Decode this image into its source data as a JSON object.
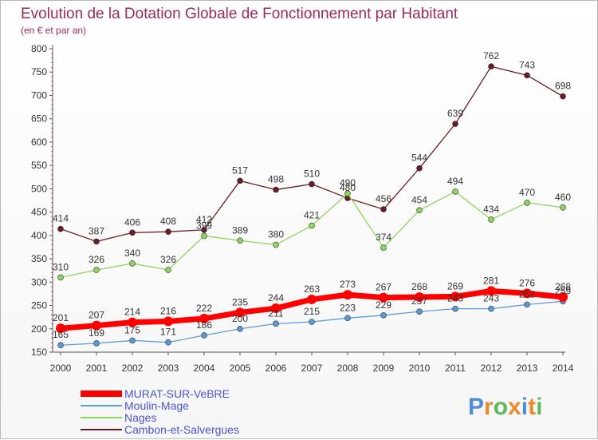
{
  "chart_data": {
    "type": "line",
    "title": "Evolution de la Dotation Globale de Fonctionnement par Habitant",
    "subtitle": "(en € et par an)",
    "x": [
      "2000",
      "2001",
      "2002",
      "2003",
      "2004",
      "2005",
      "2006",
      "2007",
      "2008",
      "2009",
      "2010",
      "2011",
      "2012",
      "2013",
      "2014"
    ],
    "ylim": [
      150,
      800
    ],
    "yticks": [
      150,
      200,
      250,
      300,
      350,
      400,
      450,
      500,
      550,
      600,
      650,
      700,
      750,
      800
    ],
    "grid": false,
    "legend_position": "bottom-left",
    "series": [
      {
        "name": "Cambon-et-Salvergues",
        "color": "#6b1c22",
        "values": [
          414,
          387,
          406,
          408,
          412,
          517,
          498,
          510,
          480,
          456,
          544,
          639,
          762,
          743,
          698
        ]
      },
      {
        "name": "Nages",
        "color": "#8fd45f",
        "values": [
          310,
          326,
          340,
          326,
          399,
          389,
          380,
          421,
          490,
          374,
          454,
          494,
          434,
          470,
          460
        ]
      },
      {
        "name": "Moulin-Mage",
        "color": "#5b9bd5",
        "values": [
          165,
          169,
          175,
          171,
          186,
          200,
          211,
          215,
          223,
          229,
          237,
          243,
          243,
          252,
          259
        ]
      },
      {
        "name": "MURAT-SUR-VeBRE",
        "color": "#ff0000",
        "values": [
          201,
          207,
          214,
          216,
          222,
          235,
          244,
          263,
          273,
          267,
          268,
          269,
          281,
          276,
          268
        ]
      }
    ],
    "data_labels": {
      "Cambon-et-Salvergues": [
        "414",
        "387",
        "406",
        "408",
        "412",
        "517",
        "498",
        "510",
        "480",
        "456",
        "544",
        "639",
        "762",
        "743",
        "698"
      ],
      "Nages": [
        "310",
        "326",
        "340",
        "326",
        "399",
        "389",
        "380",
        "421",
        "490",
        "374",
        "454",
        "494",
        "434",
        "470",
        "460"
      ],
      "Moulin-Mage": [
        "165",
        "169",
        "175",
        "171",
        "186",
        "200",
        "211",
        "215",
        "223",
        "229",
        "237",
        "243",
        "243",
        "252",
        "259"
      ],
      "MURAT-SUR-VeBRE": [
        "201",
        "207",
        "214",
        "216",
        "222",
        "235",
        "244",
        "263",
        "273",
        "267",
        "268",
        "269",
        "281",
        "276",
        "268"
      ]
    }
  },
  "legend": [
    {
      "label": "MURAT-SUR-VeBRE",
      "color": "#ff0000"
    },
    {
      "label": "Moulin-Mage",
      "color": "#5b9bd5"
    },
    {
      "label": "Nages",
      "color": "#8fd45f"
    },
    {
      "label": "Cambon-et-Salvergues",
      "color": "#6b1c22"
    }
  ],
  "logo": {
    "text": "Proxiti"
  }
}
